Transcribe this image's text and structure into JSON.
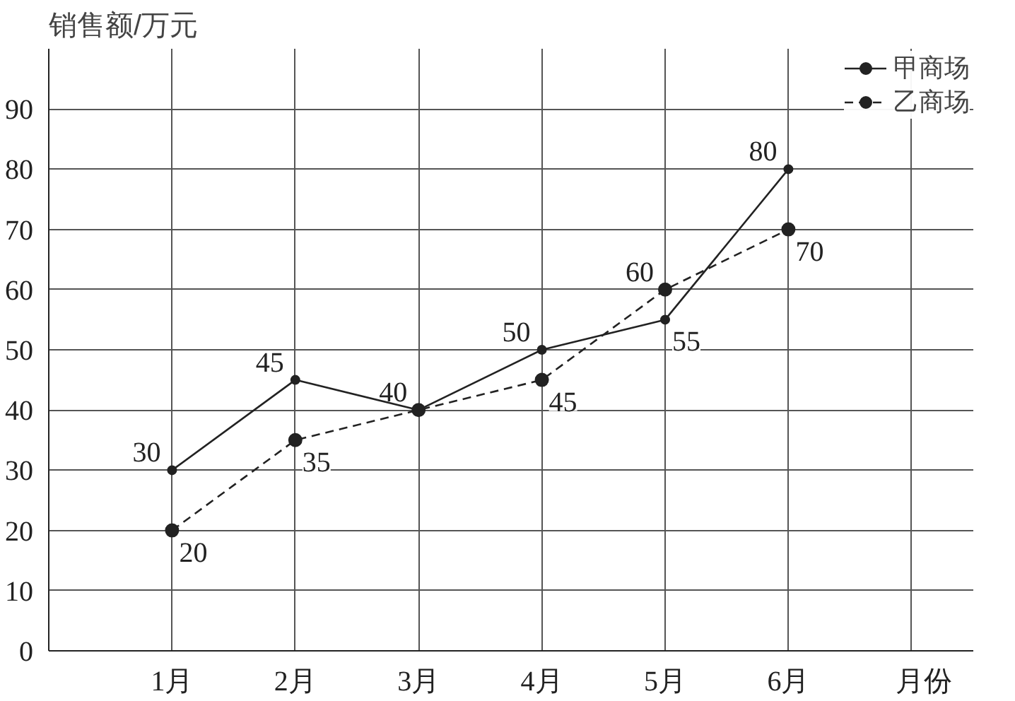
{
  "chart_data": {
    "type": "line",
    "xlabel": "月份",
    "ylabel": "销售额/万元",
    "categories": [
      "1月",
      "2月",
      "3月",
      "4月",
      "5月",
      "6月"
    ],
    "series": [
      {
        "name": "甲商场",
        "color": "#222222",
        "line_style": "solid",
        "values": [
          30,
          45,
          40,
          50,
          55,
          80
        ],
        "value_labels": [
          "30",
          "45",
          "40",
          "50",
          "55",
          "80"
        ]
      },
      {
        "name": "乙商场",
        "color": "#222222",
        "line_style": "dashed",
        "values": [
          20,
          35,
          40,
          45,
          60,
          70
        ],
        "value_labels": [
          "20",
          "35",
          null,
          "45",
          "60",
          "70"
        ]
      }
    ],
    "ylim": [
      0,
      100
    ],
    "yticks": [
      0,
      10,
      20,
      30,
      40,
      50,
      60,
      70,
      80,
      90
    ],
    "grid": true,
    "legend": "top right",
    "marker": "circle"
  }
}
